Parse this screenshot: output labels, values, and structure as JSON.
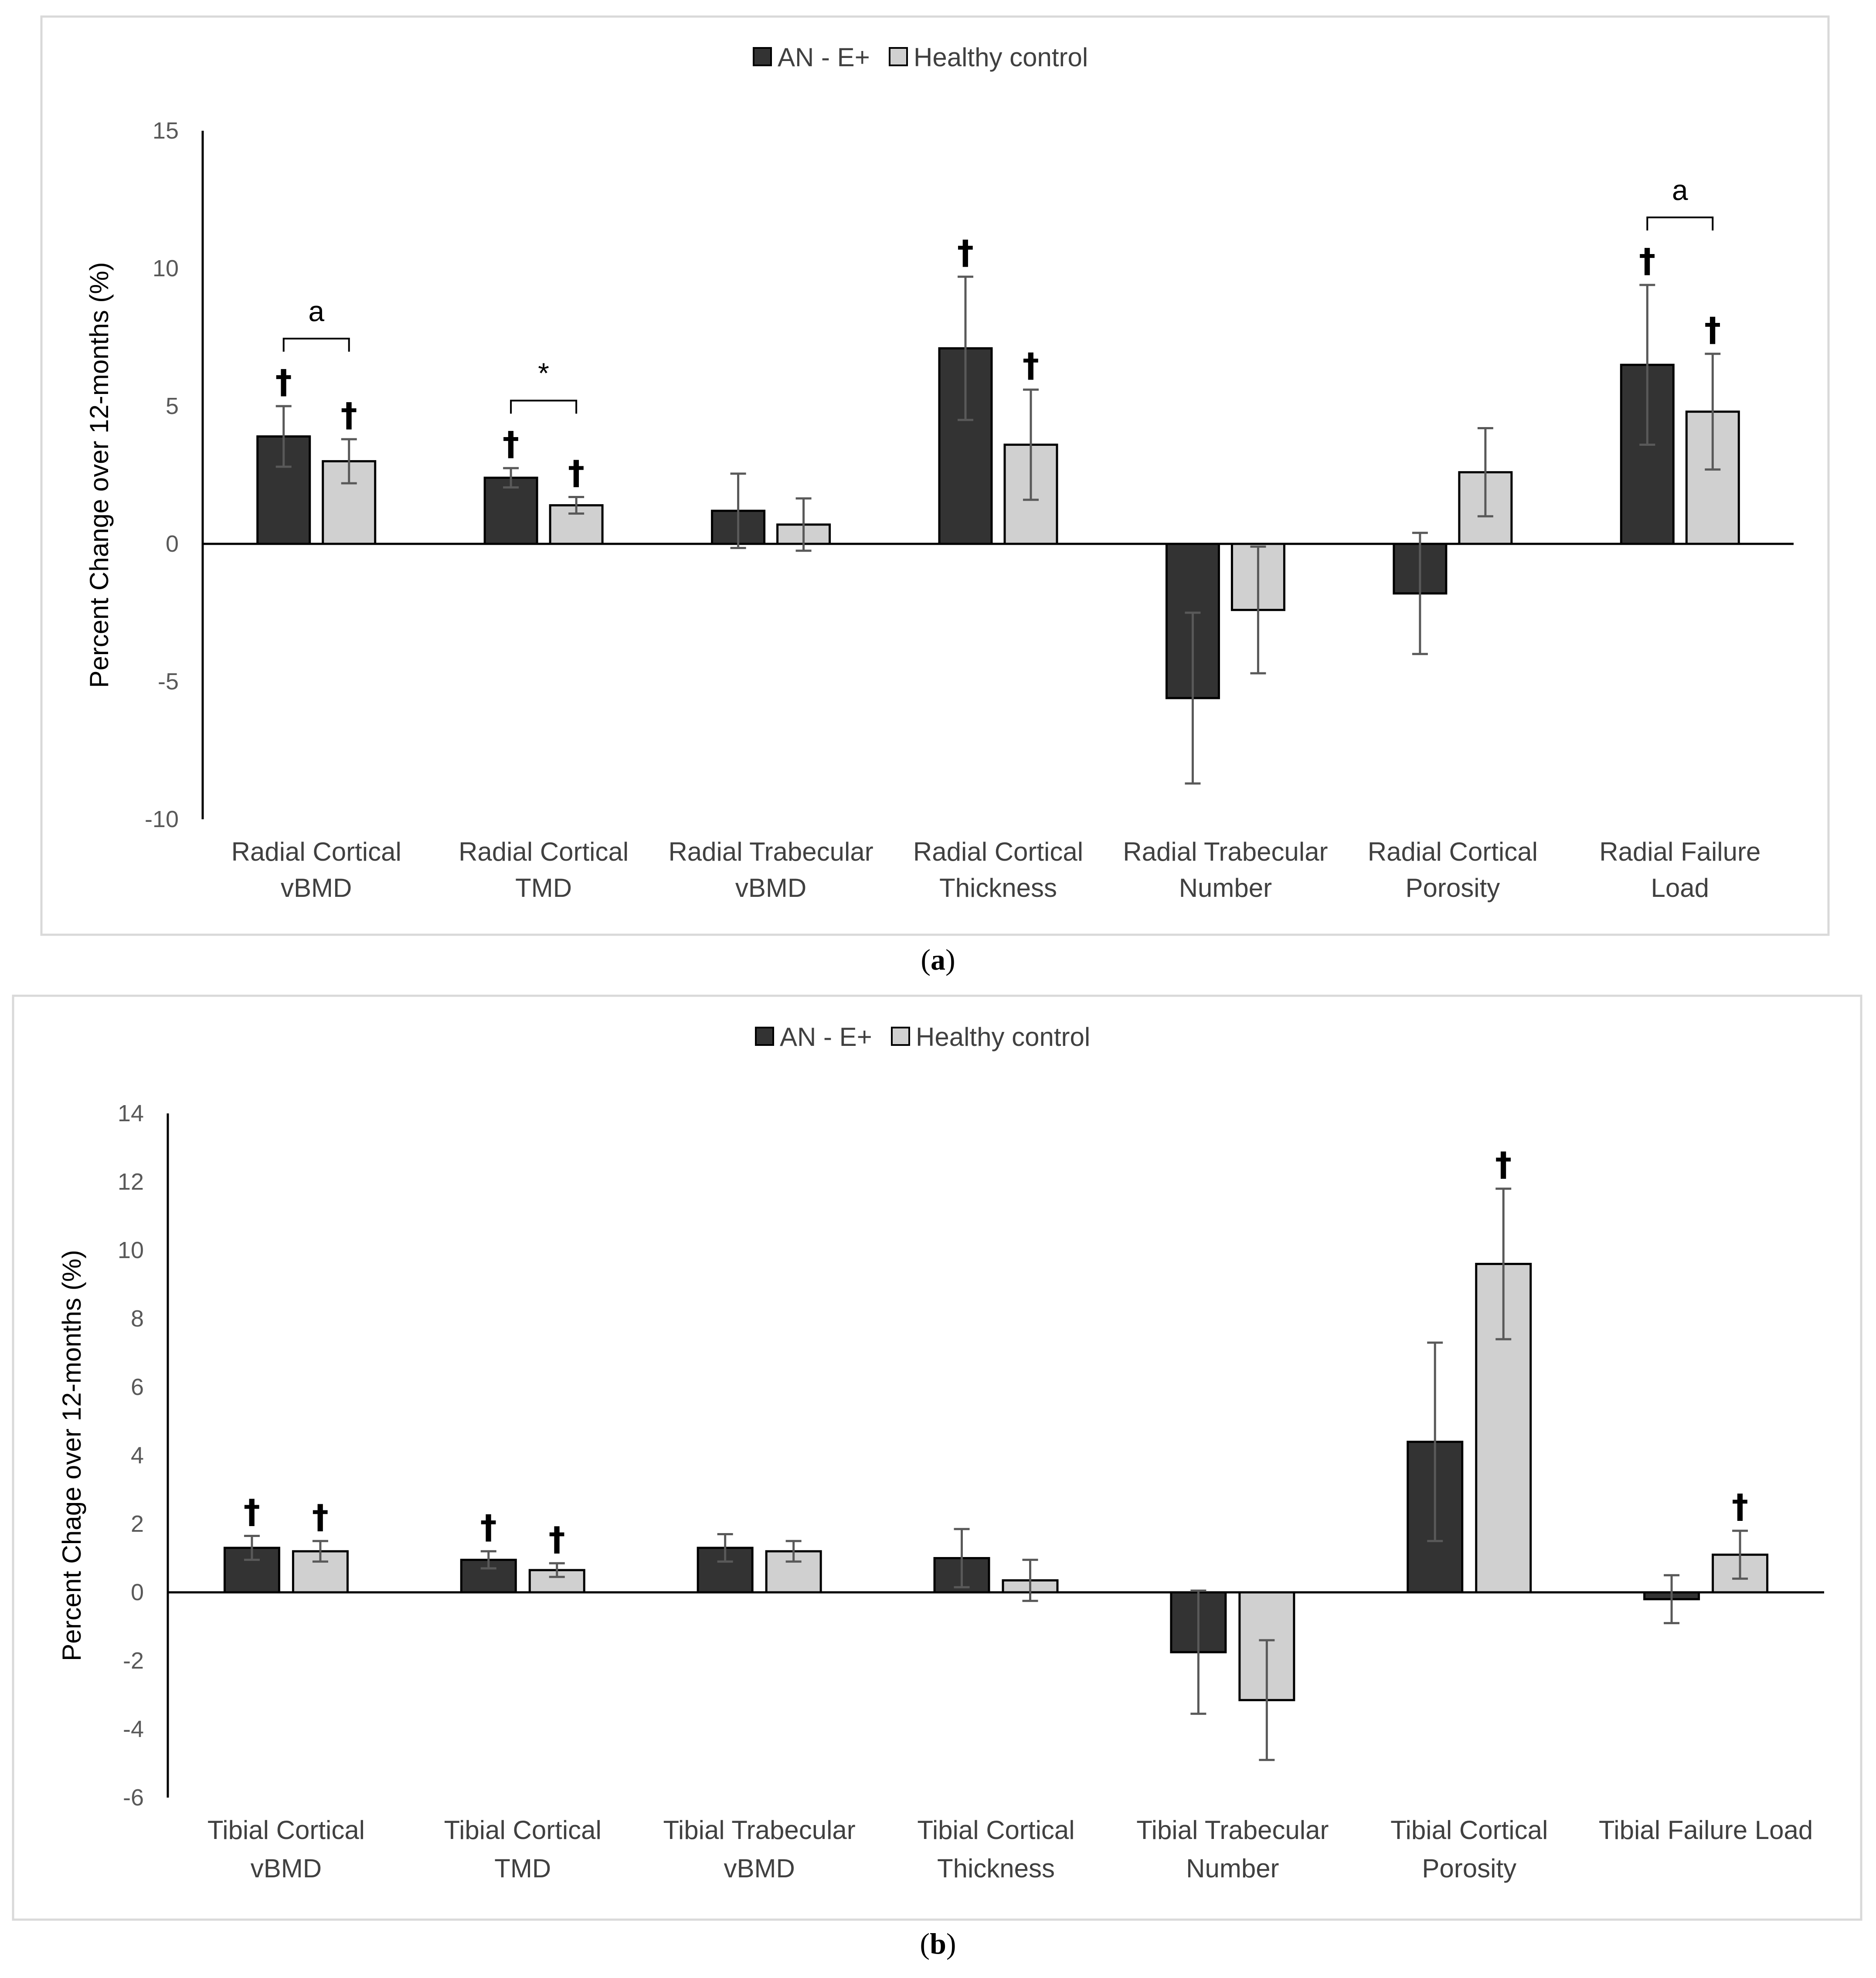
{
  "chart_data": [
    {
      "type": "bar",
      "panel": "a",
      "caption": {
        "open": "(",
        "letter": "a",
        "close": ")"
      },
      "ylabel": "Percent Change over 12-months (%)",
      "ylim": [
        -10,
        15
      ],
      "yticks": [
        15,
        10,
        5,
        0,
        -5,
        -10
      ],
      "legend": {
        "position": "top-center"
      },
      "categories": [
        [
          "Radial Cortical",
          "vBMD"
        ],
        [
          "Radial Cortical",
          "TMD"
        ],
        [
          "Radial Trabecular",
          "vBMD"
        ],
        [
          "Radial Cortical",
          "Thickness"
        ],
        [
          "Radial Trabecular",
          "Number"
        ],
        [
          "Radial Cortical",
          "Porosity"
        ],
        [
          "Radial Failure",
          "Load"
        ]
      ],
      "series": [
        {
          "name": "AN - E+",
          "color": "#333333",
          "values": [
            3.9,
            2.4,
            1.2,
            7.1,
            -5.6,
            -1.8,
            6.5
          ],
          "errors": [
            1.1,
            0.35,
            1.35,
            2.6,
            3.1,
            2.2,
            2.9
          ],
          "dagger": [
            true,
            true,
            false,
            true,
            false,
            false,
            true
          ]
        },
        {
          "name": "Healthy control",
          "color": "#d0d0d0",
          "values": [
            3.0,
            1.4,
            0.7,
            3.6,
            -2.4,
            2.6,
            4.8
          ],
          "errors": [
            0.8,
            0.3,
            0.95,
            2.0,
            2.3,
            1.6,
            2.1
          ],
          "dagger": [
            true,
            true,
            false,
            true,
            false,
            false,
            true
          ]
        }
      ],
      "dagger_symbol": "†",
      "brackets": [
        {
          "category": 0,
          "label": "a"
        },
        {
          "category": 1,
          "label": "*"
        },
        {
          "category": 6,
          "label": "a"
        }
      ]
    },
    {
      "type": "bar",
      "panel": "b",
      "caption": {
        "open": "(",
        "letter": "b",
        "close": ")"
      },
      "ylabel": "Percent Chage over 12-months (%)",
      "ylim": [
        -6,
        14
      ],
      "yticks": [
        14,
        12,
        10,
        8,
        6,
        4,
        2,
        0,
        -2,
        -4,
        -6
      ],
      "legend": {
        "position": "top-center"
      },
      "categories": [
        [
          "Tibial Cortical",
          "vBMD"
        ],
        [
          "Tibial Cortical",
          "TMD"
        ],
        [
          "Tibial Trabecular",
          "vBMD"
        ],
        [
          "Tibial Cortical",
          "Thickness"
        ],
        [
          "Tibial Trabecular",
          "Number"
        ],
        [
          "Tibial Cortical",
          "Porosity"
        ],
        [
          "Tibial Failure Load"
        ]
      ],
      "series": [
        {
          "name": "AN - E+",
          "color": "#333333",
          "values": [
            1.3,
            0.95,
            1.3,
            1.0,
            -1.75,
            4.4,
            -0.2
          ],
          "errors": [
            0.35,
            0.25,
            0.4,
            0.85,
            1.8,
            2.9,
            0.7
          ],
          "dagger": [
            true,
            true,
            false,
            false,
            false,
            false,
            false
          ]
        },
        {
          "name": "Healthy control",
          "color": "#d0d0d0",
          "values": [
            1.2,
            0.65,
            1.2,
            0.35,
            -3.15,
            9.6,
            1.1
          ],
          "errors": [
            0.3,
            0.2,
            0.3,
            0.6,
            1.75,
            2.2,
            0.7
          ],
          "dagger": [
            true,
            true,
            false,
            false,
            false,
            true,
            true
          ]
        }
      ],
      "dagger_symbol": "†",
      "brackets": []
    }
  ]
}
